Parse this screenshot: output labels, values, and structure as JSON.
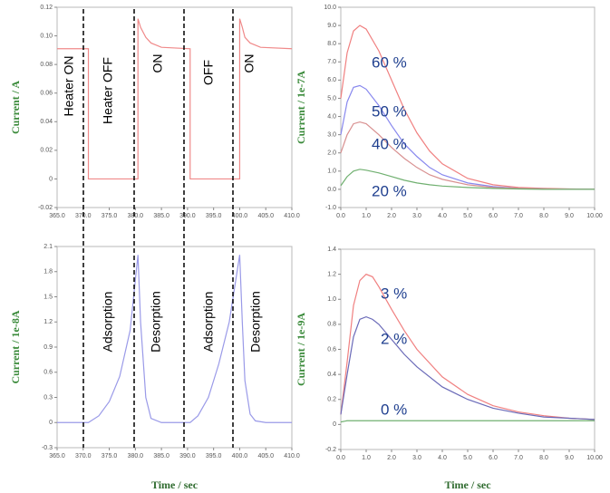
{
  "chart_data": [
    {
      "type": "line",
      "ylabel": "Current / A",
      "xlim": [
        365,
        410
      ],
      "ylim": [
        -0.02,
        0.12
      ],
      "xticks": [
        {
          "value": 365,
          "label": "365.0"
        },
        {
          "value": 370,
          "label": "370.0"
        },
        {
          "value": 375,
          "label": "375.0"
        },
        {
          "value": 380,
          "label": "380.0"
        },
        {
          "value": 385,
          "label": "385.0"
        },
        {
          "value": 390,
          "label": "390.0"
        },
        {
          "value": 395,
          "label": "395.0"
        },
        {
          "value": 400,
          "label": "400.0"
        },
        {
          "value": 405,
          "label": "405.0"
        },
        {
          "value": 410,
          "label": "410.0"
        }
      ],
      "yticks": [
        -0.02,
        0,
        0.02,
        0.04,
        0.06,
        0.08,
        {
          "value": 0.1,
          "label": "0.10"
        },
        0.12
      ],
      "annotations": [
        "Heater ON",
        "Heater OFF",
        "ON",
        "OFF",
        "ON"
      ],
      "series": [
        {
          "color": "#f08a8a",
          "x": [
            365,
            371,
            371,
            380.5,
            380.5,
            381,
            382,
            383,
            385,
            390.5,
            390.5,
            400,
            400,
            400.5,
            401,
            402,
            404,
            410
          ],
          "values": [
            0.091,
            0.091,
            0,
            0,
            0.112,
            0.106,
            0.099,
            0.095,
            0.092,
            0.091,
            0,
            0,
            0.112,
            0.106,
            0.099,
            0.095,
            0.092,
            0.091
          ]
        }
      ]
    },
    {
      "type": "line",
      "ylabel": "Current / 1e-7A",
      "xlim": [
        0,
        10
      ],
      "ylim": [
        -1,
        10
      ],
      "xticks": [
        {
          "value": 0,
          "label": "0.0"
        },
        {
          "value": 1,
          "label": "1.0"
        },
        {
          "value": 2,
          "label": "2.0"
        },
        {
          "value": 3,
          "label": "3.0"
        },
        {
          "value": 4,
          "label": "4.0"
        },
        {
          "value": 5,
          "label": "5.0"
        },
        {
          "value": 6,
          "label": "6.0"
        },
        {
          "value": 7,
          "label": "7.0"
        },
        {
          "value": 8,
          "label": "8.0"
        },
        {
          "value": 9,
          "label": "9.0"
        },
        {
          "value": 10,
          "label": "10.00"
        }
      ],
      "yticks": [
        {
          "value": -1,
          "label": "-1.0"
        },
        {
          "value": 0,
          "label": "0.0"
        },
        {
          "value": 1,
          "label": "1.0"
        },
        {
          "value": 2,
          "label": "2.0"
        },
        {
          "value": 3,
          "label": "3.0"
        },
        {
          "value": 4,
          "label": "4.0"
        },
        {
          "value": 5,
          "label": "5.0"
        },
        {
          "value": 6,
          "label": "6.0"
        },
        {
          "value": 7,
          "label": "7.0"
        },
        {
          "value": 8,
          "label": "8.0"
        },
        {
          "value": 9,
          "label": "9.0"
        },
        {
          "value": 10,
          "label": "10.0"
        }
      ],
      "series": [
        {
          "name": "60 %",
          "color": "#f08080",
          "x": [
            0,
            0.25,
            0.5,
            0.75,
            1,
            1.5,
            2,
            2.5,
            3,
            3.5,
            4,
            5,
            6,
            7,
            8,
            9,
            10
          ],
          "values": [
            5.0,
            7.5,
            8.7,
            9.0,
            8.8,
            7.6,
            6.0,
            4.4,
            3.1,
            2.1,
            1.4,
            0.6,
            0.25,
            0.1,
            0.05,
            0.02,
            0.0
          ]
        },
        {
          "name": "50 %",
          "color": "#8888ee",
          "x": [
            0,
            0.25,
            0.5,
            0.75,
            1,
            1.5,
            2,
            2.5,
            3,
            3.5,
            4,
            5,
            6,
            7,
            8,
            9,
            10
          ],
          "values": [
            3.0,
            4.8,
            5.6,
            5.7,
            5.5,
            4.6,
            3.5,
            2.5,
            1.8,
            1.2,
            0.8,
            0.35,
            0.15,
            0.05,
            0.02,
            0.0,
            0.0
          ]
        },
        {
          "name": "40 %",
          "color": "#d89090",
          "x": [
            0,
            0.25,
            0.5,
            0.75,
            1,
            1.5,
            2,
            2.5,
            3,
            3.5,
            4,
            5,
            6,
            7,
            8,
            9,
            10
          ],
          "values": [
            2.0,
            3.0,
            3.6,
            3.7,
            3.6,
            3.0,
            2.3,
            1.7,
            1.2,
            0.8,
            0.55,
            0.25,
            0.1,
            0.05,
            0.02,
            0.0,
            0.0
          ]
        },
        {
          "name": "20 %",
          "color": "#70b070",
          "x": [
            0,
            0.25,
            0.5,
            0.75,
            1,
            1.5,
            2,
            2.5,
            3,
            3.5,
            4,
            5,
            6,
            7,
            8,
            9,
            10
          ],
          "values": [
            0.2,
            0.7,
            1.0,
            1.1,
            1.05,
            0.9,
            0.7,
            0.5,
            0.35,
            0.25,
            0.18,
            0.1,
            0.05,
            0.02,
            0.0,
            0.0,
            0.0
          ]
        }
      ]
    },
    {
      "type": "line",
      "ylabel": "Current / 1e-8A",
      "xlabel": "Time / sec",
      "xlim": [
        365,
        410
      ],
      "ylim": [
        -0.3,
        2.1
      ],
      "xticks": [
        {
          "value": 365,
          "label": "365.0"
        },
        {
          "value": 370,
          "label": "370.0"
        },
        {
          "value": 375,
          "label": "375.0"
        },
        {
          "value": 380,
          "label": "380.0"
        },
        {
          "value": 385,
          "label": "385.0"
        },
        {
          "value": 390,
          "label": "390.0"
        },
        {
          "value": 395,
          "label": "395.0"
        },
        {
          "value": 400,
          "label": "400.0"
        },
        {
          "value": 405,
          "label": "405.0"
        },
        {
          "value": 410,
          "label": "410.0"
        }
      ],
      "yticks": [
        -0.3,
        0,
        0.3,
        0.6,
        0.9,
        1.2,
        1.5,
        1.8,
        2.1
      ],
      "annotations": [
        "Adsorption",
        "Desorption",
        "Adsorption",
        "Desorption"
      ],
      "series": [
        {
          "color": "#9a9ae8",
          "x": [
            365,
            371,
            373,
            375,
            377,
            379,
            380.5,
            381,
            382,
            383,
            385,
            390.5,
            392,
            394,
            396,
            398,
            400,
            400.5,
            401,
            402,
            403,
            405,
            410
          ],
          "values": [
            0,
            0,
            0.08,
            0.25,
            0.55,
            1.1,
            2.0,
            1.2,
            0.3,
            0.05,
            0,
            0,
            0.08,
            0.3,
            0.7,
            1.2,
            2.0,
            1.2,
            0.5,
            0.1,
            0.02,
            0,
            0
          ]
        }
      ]
    },
    {
      "type": "line",
      "ylabel": "Current / 1e-9A",
      "xlabel": "Time / sec",
      "xlim": [
        0,
        10
      ],
      "ylim": [
        -0.2,
        1.4
      ],
      "xticks": [
        {
          "value": 0,
          "label": "0.0"
        },
        {
          "value": 1,
          "label": "1.0"
        },
        {
          "value": 2,
          "label": "2.0"
        },
        {
          "value": 3,
          "label": "3.0"
        },
        {
          "value": 4,
          "label": "4.0"
        },
        {
          "value": 5,
          "label": "5.0"
        },
        {
          "value": 6,
          "label": "6.0"
        },
        {
          "value": 7,
          "label": "7.0"
        },
        {
          "value": 8,
          "label": "8.0"
        },
        {
          "value": 9,
          "label": "9.0"
        },
        {
          "value": 10,
          "label": "10.00"
        }
      ],
      "yticks": [
        -0.2,
        0,
        0.2,
        0.4,
        0.6,
        0.8,
        {
          "value": 1,
          "label": "1.0"
        },
        1.2,
        1.4
      ],
      "series": [
        {
          "name": "3 %",
          "color": "#f08080",
          "x": [
            0,
            0.25,
            0.5,
            0.75,
            1,
            1.25,
            1.5,
            2,
            2.5,
            3,
            4,
            5,
            6,
            7,
            8,
            9,
            10
          ],
          "values": [
            0.08,
            0.5,
            0.95,
            1.15,
            1.2,
            1.18,
            1.1,
            0.92,
            0.75,
            0.6,
            0.38,
            0.24,
            0.15,
            0.1,
            0.07,
            0.05,
            0.04
          ]
        },
        {
          "name": "2 %",
          "color": "#6a6ab8",
          "x": [
            0,
            0.25,
            0.5,
            0.75,
            1,
            1.25,
            1.5,
            2,
            2.5,
            3,
            4,
            5,
            6,
            7,
            8,
            9,
            10
          ],
          "values": [
            0.08,
            0.4,
            0.7,
            0.84,
            0.86,
            0.84,
            0.8,
            0.68,
            0.56,
            0.46,
            0.3,
            0.2,
            0.13,
            0.09,
            0.06,
            0.05,
            0.04
          ]
        },
        {
          "name": "0 %",
          "color": "#70b070",
          "x": [
            0,
            0.25,
            0.5,
            0.75,
            1,
            1.25,
            1.5,
            2,
            2.5,
            3,
            4,
            5,
            6,
            7,
            8,
            9,
            10
          ],
          "values": [
            0.02,
            0.03,
            0.03,
            0.03,
            0.03,
            0.03,
            0.03,
            0.03,
            0.03,
            0.03,
            0.03,
            0.03,
            0.03,
            0.03,
            0.03,
            0.03,
            0.03
          ]
        }
      ]
    }
  ]
}
